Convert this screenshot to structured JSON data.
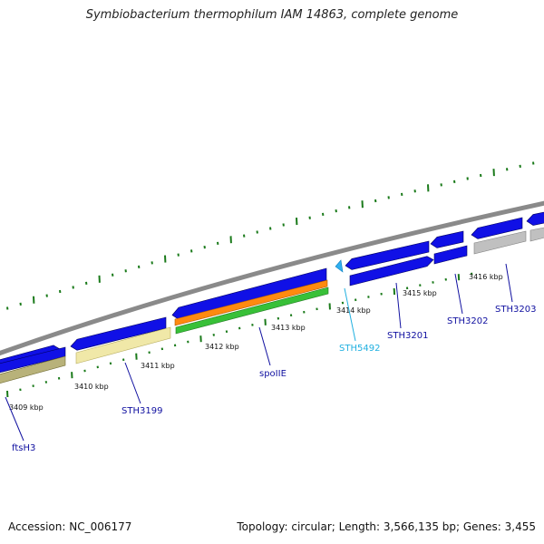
{
  "title": "Symbiobacterium thermophilum IAM 14863, complete genome",
  "footer": {
    "accession": "Accession: NC_006177",
    "summary": "Topology: circular; Length: 3,566,135 bp; Genes: 3,455"
  },
  "colors": {
    "backbone": "#8a8a8a",
    "cds": "#1010e6",
    "cds_dark": "#000090",
    "gene_khaki": "#b8b27a",
    "gene_yellow": "#f0e8a8",
    "gene_orange": "#ff8a10",
    "gene_green": "#38c038",
    "gene_gray": "#c0c0c0",
    "tick": "#1a7a1a",
    "label_blue": "#1010a0",
    "label_cyan": "#20b0e0"
  },
  "scale": {
    "ticks": [
      {
        "label": "3409 kbp"
      },
      {
        "label": "3410 kbp"
      },
      {
        "label": "3411 kbp"
      },
      {
        "label": "3412 kbp"
      },
      {
        "label": "3413 kbp"
      },
      {
        "label": "3414 kbp"
      },
      {
        "label": "3415 kbp"
      },
      {
        "label": "3416 kbp"
      }
    ]
  },
  "gene_labels": [
    {
      "name": "ftsH3",
      "color": "label_blue"
    },
    {
      "name": "STH3199",
      "color": "label_blue"
    },
    {
      "name": "spoIIE",
      "color": "label_blue"
    },
    {
      "name": "STH5492",
      "color": "label_cyan"
    },
    {
      "name": "STH3201",
      "color": "label_blue"
    },
    {
      "name": "STH3202",
      "color": "label_blue"
    },
    {
      "name": "STH3203",
      "color": "label_blue"
    }
  ]
}
